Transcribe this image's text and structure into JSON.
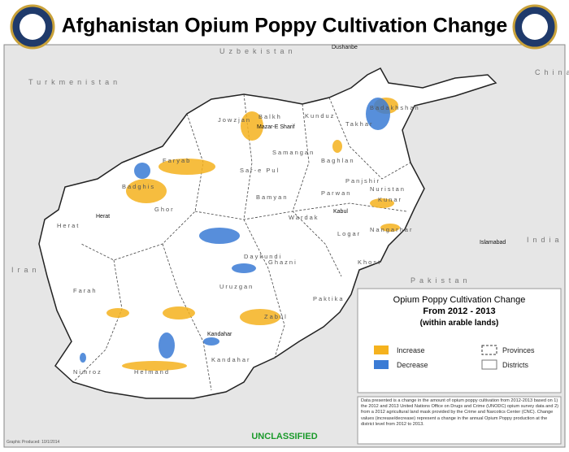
{
  "header": {
    "title": "Afghanistan Opium Poppy Cultivation Change"
  },
  "map": {
    "countries": [
      "Uzbekistan",
      "Turkmenistan",
      "Iran",
      "Pakistan",
      "India",
      "China"
    ],
    "cities": [
      "Dushanbe",
      "Mazar-E Sharif",
      "Herat",
      "Kabul",
      "Kandahar",
      "Islamabad"
    ],
    "provinces": [
      "Jowzjan",
      "Balkh",
      "Kunduz",
      "Takhar",
      "Badakhshan",
      "Samangan",
      "Baghlan",
      "Sar-e Pul",
      "Faryab",
      "Badghis",
      "Bamyan",
      "Parwan",
      "Panjshir",
      "Nuristan",
      "Kunar",
      "Wardak",
      "Logar",
      "Nangarhar",
      "Khost",
      "Paktika",
      "Herat",
      "Ghor",
      "Daykundi",
      "Uruzgan",
      "Ghazni",
      "Zabul",
      "Farah",
      "Nimroz",
      "Helmand",
      "Kandahar"
    ]
  },
  "legend": {
    "title": [
      "Opium Poppy Cultivation Change",
      "From 2012 - 2013",
      "(within arable lands)"
    ],
    "items": [
      "Increase",
      "Decrease",
      "Provinces",
      "Districts"
    ]
  },
  "note": "Data presented is a change in the amount of opium poppy cultivation from 2012-2013 based on 1) the 2012 and 2013 United Nations Office on Drugs and Crime (UNODC) opium survey data and 2) from a 2012 agricultural land mask provided by the Crime and Narcotics Center (CNC). Change values (increase/decrease) represent a change in the annual Opium Poppy production at the district level from 2012 to 2013.",
  "footer": {
    "classification": "UNCLASSIFIED",
    "produced": "Graphic Produced: 10/1/2014"
  }
}
